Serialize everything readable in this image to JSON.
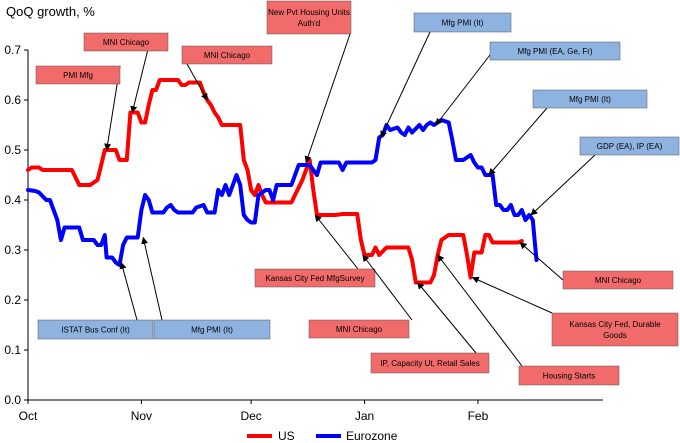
{
  "chart_data": {
    "type": "line",
    "title": "QoQ growth, %",
    "xlabel": "",
    "ylabel": "",
    "ylim": [
      0,
      0.7
    ],
    "y_ticks": [
      "0.0",
      "0.1",
      "0.2",
      "0.3",
      "0.4",
      "0.5",
      "0.6",
      "0.7"
    ],
    "x_ticks": [
      {
        "label": "Oct",
        "x": 0
      },
      {
        "label": "Nov",
        "x": 31
      },
      {
        "label": "Dec",
        "x": 61
      },
      {
        "label": "Jan",
        "x": 92
      },
      {
        "label": "Feb",
        "x": 123
      }
    ],
    "xlim": [
      0,
      155
    ],
    "legend_position": "bottom-center",
    "grid": false,
    "series": [
      {
        "name": "US",
        "color": "#ff0000",
        "points": [
          [
            0,
            0.46
          ],
          [
            1,
            0.465
          ],
          [
            3,
            0.465
          ],
          [
            4,
            0.46
          ],
          [
            12,
            0.46
          ],
          [
            13,
            0.445
          ],
          [
            14,
            0.43
          ],
          [
            17,
            0.43
          ],
          [
            18,
            0.435
          ],
          [
            19,
            0.44
          ],
          [
            20,
            0.47
          ],
          [
            21,
            0.5
          ],
          [
            24,
            0.5
          ],
          [
            25,
            0.48
          ],
          [
            27,
            0.48
          ],
          [
            28,
            0.575
          ],
          [
            30,
            0.575
          ],
          [
            31,
            0.555
          ],
          [
            32,
            0.555
          ],
          [
            33,
            0.59
          ],
          [
            34,
            0.62
          ],
          [
            35,
            0.62
          ],
          [
            36,
            0.64
          ],
          [
            41,
            0.64
          ],
          [
            42,
            0.63
          ],
          [
            43,
            0.63
          ],
          [
            44,
            0.635
          ],
          [
            47,
            0.635
          ],
          [
            48,
            0.615
          ],
          [
            49,
            0.6
          ],
          [
            50,
            0.59
          ],
          [
            51,
            0.575
          ],
          [
            52,
            0.565
          ],
          [
            53,
            0.55
          ],
          [
            54,
            0.55
          ],
          [
            55,
            0.55
          ],
          [
            58,
            0.55
          ],
          [
            59,
            0.48
          ],
          [
            60,
            0.46
          ],
          [
            61,
            0.42
          ],
          [
            62,
            0.41
          ],
          [
            63,
            0.43
          ],
          [
            64,
            0.41
          ],
          [
            65,
            0.395
          ],
          [
            72,
            0.395
          ],
          [
            73,
            0.41
          ],
          [
            75,
            0.44
          ],
          [
            76,
            0.46
          ],
          [
            77,
            0.48
          ],
          [
            78,
            0.42
          ],
          [
            79,
            0.37
          ],
          [
            84,
            0.37
          ],
          [
            86,
            0.372
          ],
          [
            90,
            0.372
          ],
          [
            91,
            0.32
          ],
          [
            92,
            0.29
          ],
          [
            93,
            0.29
          ],
          [
            94,
            0.29
          ],
          [
            95,
            0.305
          ],
          [
            96,
            0.29
          ],
          [
            98,
            0.305
          ],
          [
            104,
            0.305
          ],
          [
            105,
            0.28
          ],
          [
            106,
            0.235
          ],
          [
            110,
            0.235
          ],
          [
            111,
            0.25
          ],
          [
            112,
            0.29
          ],
          [
            113,
            0.32
          ],
          [
            115,
            0.33
          ],
          [
            119,
            0.33
          ],
          [
            120,
            0.29
          ],
          [
            121,
            0.245
          ],
          [
            122,
            0.295
          ],
          [
            124,
            0.295
          ],
          [
            125,
            0.33
          ],
          [
            126,
            0.33
          ],
          [
            127,
            0.315
          ],
          [
            134,
            0.315
          ],
          [
            135,
            0.318
          ]
        ]
      },
      {
        "name": "Eurozone",
        "color": "#0000ff",
        "points": [
          [
            0,
            0.42
          ],
          [
            2,
            0.418
          ],
          [
            3,
            0.415
          ],
          [
            5,
            0.4
          ],
          [
            6,
            0.4
          ],
          [
            7,
            0.38
          ],
          [
            8,
            0.36
          ],
          [
            9,
            0.32
          ],
          [
            10,
            0.345
          ],
          [
            14,
            0.345
          ],
          [
            15,
            0.32
          ],
          [
            18,
            0.32
          ],
          [
            19,
            0.31
          ],
          [
            20,
            0.31
          ],
          [
            21,
            0.33
          ],
          [
            21.5,
            0.285
          ],
          [
            23,
            0.285
          ],
          [
            24,
            0.275
          ],
          [
            25,
            0.27
          ],
          [
            26,
            0.31
          ],
          [
            27,
            0.325
          ],
          [
            30,
            0.325
          ],
          [
            31,
            0.38
          ],
          [
            32,
            0.41
          ],
          [
            33,
            0.4
          ],
          [
            34,
            0.375
          ],
          [
            37,
            0.375
          ],
          [
            38,
            0.385
          ],
          [
            39,
            0.39
          ],
          [
            40,
            0.38
          ],
          [
            41,
            0.375
          ],
          [
            45,
            0.375
          ],
          [
            46,
            0.385
          ],
          [
            48,
            0.39
          ],
          [
            49,
            0.375
          ],
          [
            51,
            0.375
          ],
          [
            52,
            0.42
          ],
          [
            53,
            0.41
          ],
          [
            54,
            0.43
          ],
          [
            55,
            0.41
          ],
          [
            57,
            0.45
          ],
          [
            58,
            0.43
          ],
          [
            59,
            0.37
          ],
          [
            60,
            0.36
          ],
          [
            61,
            0.355
          ],
          [
            62,
            0.355
          ],
          [
            63,
            0.41
          ],
          [
            65,
            0.42
          ],
          [
            66,
            0.42
          ],
          [
            67,
            0.4
          ],
          [
            68,
            0.43
          ],
          [
            71,
            0.43
          ],
          [
            72,
            0.43
          ],
          [
            74,
            0.47
          ],
          [
            77,
            0.47
          ],
          [
            78,
            0.46
          ],
          [
            79,
            0.45
          ],
          [
            80,
            0.475
          ],
          [
            85,
            0.475
          ],
          [
            86,
            0.46
          ],
          [
            87,
            0.475
          ],
          [
            90,
            0.475
          ],
          [
            92,
            0.475
          ],
          [
            94,
            0.475
          ],
          [
            95,
            0.48
          ],
          [
            96,
            0.525
          ],
          [
            97,
            0.53
          ],
          [
            98,
            0.55
          ],
          [
            99,
            0.54
          ],
          [
            101,
            0.545
          ],
          [
            102,
            0.535
          ],
          [
            103,
            0.53
          ],
          [
            104,
            0.545
          ],
          [
            105,
            0.535
          ],
          [
            107,
            0.55
          ],
          [
            108,
            0.54
          ],
          [
            109,
            0.55
          ],
          [
            110,
            0.555
          ],
          [
            111,
            0.55
          ],
          [
            113,
            0.56
          ],
          [
            115,
            0.555
          ],
          [
            116,
            0.52
          ],
          [
            117,
            0.48
          ],
          [
            118,
            0.48
          ],
          [
            119,
            0.48
          ],
          [
            121,
            0.49
          ],
          [
            122,
            0.475
          ],
          [
            123,
            0.465
          ],
          [
            124,
            0.465
          ],
          [
            125,
            0.45
          ],
          [
            126,
            0.45
          ],
          [
            127,
            0.45
          ],
          [
            128,
            0.39
          ],
          [
            129,
            0.39
          ],
          [
            130,
            0.38
          ],
          [
            131,
            0.38
          ],
          [
            132,
            0.39
          ],
          [
            133,
            0.37
          ],
          [
            134,
            0.37
          ],
          [
            135,
            0.38
          ],
          [
            136,
            0.36
          ],
          [
            137,
            0.37
          ],
          [
            138,
            0.36
          ],
          [
            138.5,
            0.32
          ],
          [
            139,
            0.28
          ]
        ]
      }
    ],
    "annotations": [
      {
        "lines": [
          "MNI Chicago"
        ],
        "color": "#f26b6b",
        "arrow_to": [
          28.5,
          0.575
        ]
      },
      {
        "lines": [
          "PMI Mfg"
        ],
        "color": "#f26b6b",
        "arrow_to": [
          21.5,
          0.5
        ]
      },
      {
        "lines": [
          "MNI Chicago"
        ],
        "color": "#f26b6b",
        "arrow_to": [
          49,
          0.6
        ]
      },
      {
        "lines": [
          "New Pvt Housing Units",
          "Auth'd"
        ],
        "color": "#f26b6b",
        "arrow_to": [
          76,
          0.475
        ]
      },
      {
        "lines": [
          "Mfg PMI (It)"
        ],
        "color": "#8fb3e0",
        "arrow_to": [
          96.5,
          0.525
        ]
      },
      {
        "lines": [
          "Mfg PMI (EA, Ge, Fr)"
        ],
        "color": "#8fb3e0",
        "arrow_to": [
          111.5,
          0.55
        ]
      },
      {
        "lines": [
          "Mfg PMI (It)"
        ],
        "color": "#8fb3e0",
        "arrow_to": [
          126,
          0.45
        ]
      },
      {
        "lines": [
          "GDP (EA), IP (EA)"
        ],
        "color": "#8fb3e0",
        "arrow_to": [
          137.5,
          0.37
        ]
      },
      {
        "lines": [
          "Kansas City Fed MfgSurvey"
        ],
        "color": "#f26b6b",
        "arrow_to": [
          78.5,
          0.37
        ]
      },
      {
        "lines": [
          "ISTAT Bus Conf (It)"
        ],
        "color": "#8fb3e0",
        "arrow_to": [
          25.5,
          0.275
        ]
      },
      {
        "lines": [
          "Mfg PMI (It)"
        ],
        "color": "#8fb3e0",
        "arrow_to": [
          31.5,
          0.325
        ]
      },
      {
        "lines": [
          "MNI Chicago"
        ],
        "color": "#f26b6b",
        "arrow_to": [
          91.5,
          0.29
        ]
      },
      {
        "lines": [
          "IP, Capacity Ut, Retail Sales"
        ],
        "color": "#f26b6b",
        "arrow_to": [
          106.5,
          0.235
        ]
      },
      {
        "lines": [
          "Housing Starts"
        ],
        "color": "#f26b6b",
        "arrow_to": [
          112,
          0.29
        ]
      },
      {
        "lines": [
          "Kansas City Fed, Durable",
          "Goods"
        ],
        "color": "#f26b6b",
        "arrow_to": [
          121.5,
          0.245
        ]
      },
      {
        "lines": [
          "MNI Chicago"
        ],
        "color": "#f26b6b",
        "arrow_to": [
          134.5,
          0.315
        ]
      }
    ]
  }
}
